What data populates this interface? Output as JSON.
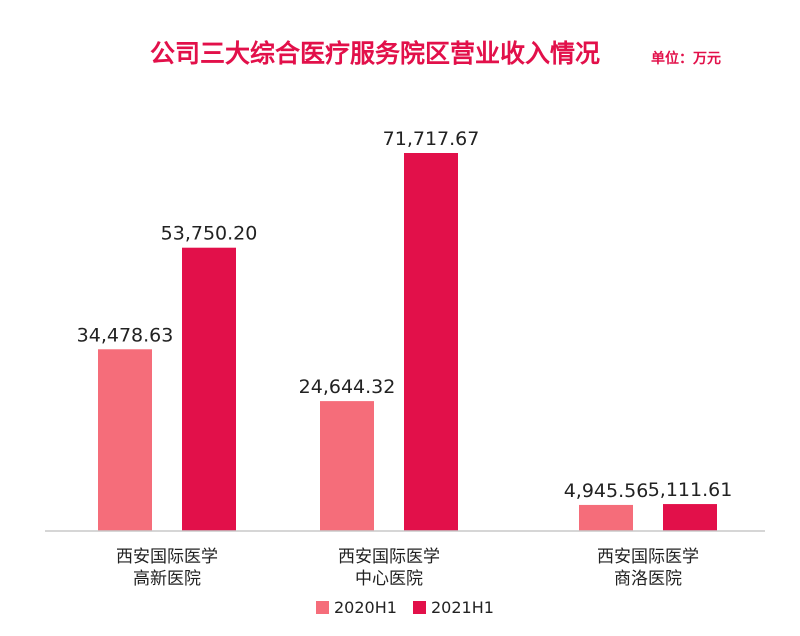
{
  "colors": {
    "series_2020": "#f56d7a",
    "series_2021": "#e2104a",
    "title": "#e2104a",
    "axis": "#c8c8c8",
    "text": "#222222"
  },
  "chart_data": {
    "type": "bar",
    "title": "公司三大综合医疗服务院区营业收入情况",
    "unit": "单位：万元",
    "categories": [
      [
        "西安国际医学",
        "高新医院"
      ],
      [
        "西安国际医学",
        "中心医院"
      ],
      [
        "西安国际医学",
        "商洛医院"
      ]
    ],
    "series": [
      {
        "name": "2020H1",
        "values": [
          34478.63,
          24644.32,
          4945.56
        ],
        "labels": [
          "34,478.63",
          "24,644.32",
          "4,945.56"
        ]
      },
      {
        "name": "2021H1",
        "values": [
          53750.2,
          71717.67,
          5111.61
        ],
        "labels": [
          "53,750.20",
          "71,717.67",
          "5,111.61"
        ]
      }
    ],
    "ylim": [
      0,
      71717.67
    ],
    "grid": false,
    "legend_position": "bottom"
  }
}
